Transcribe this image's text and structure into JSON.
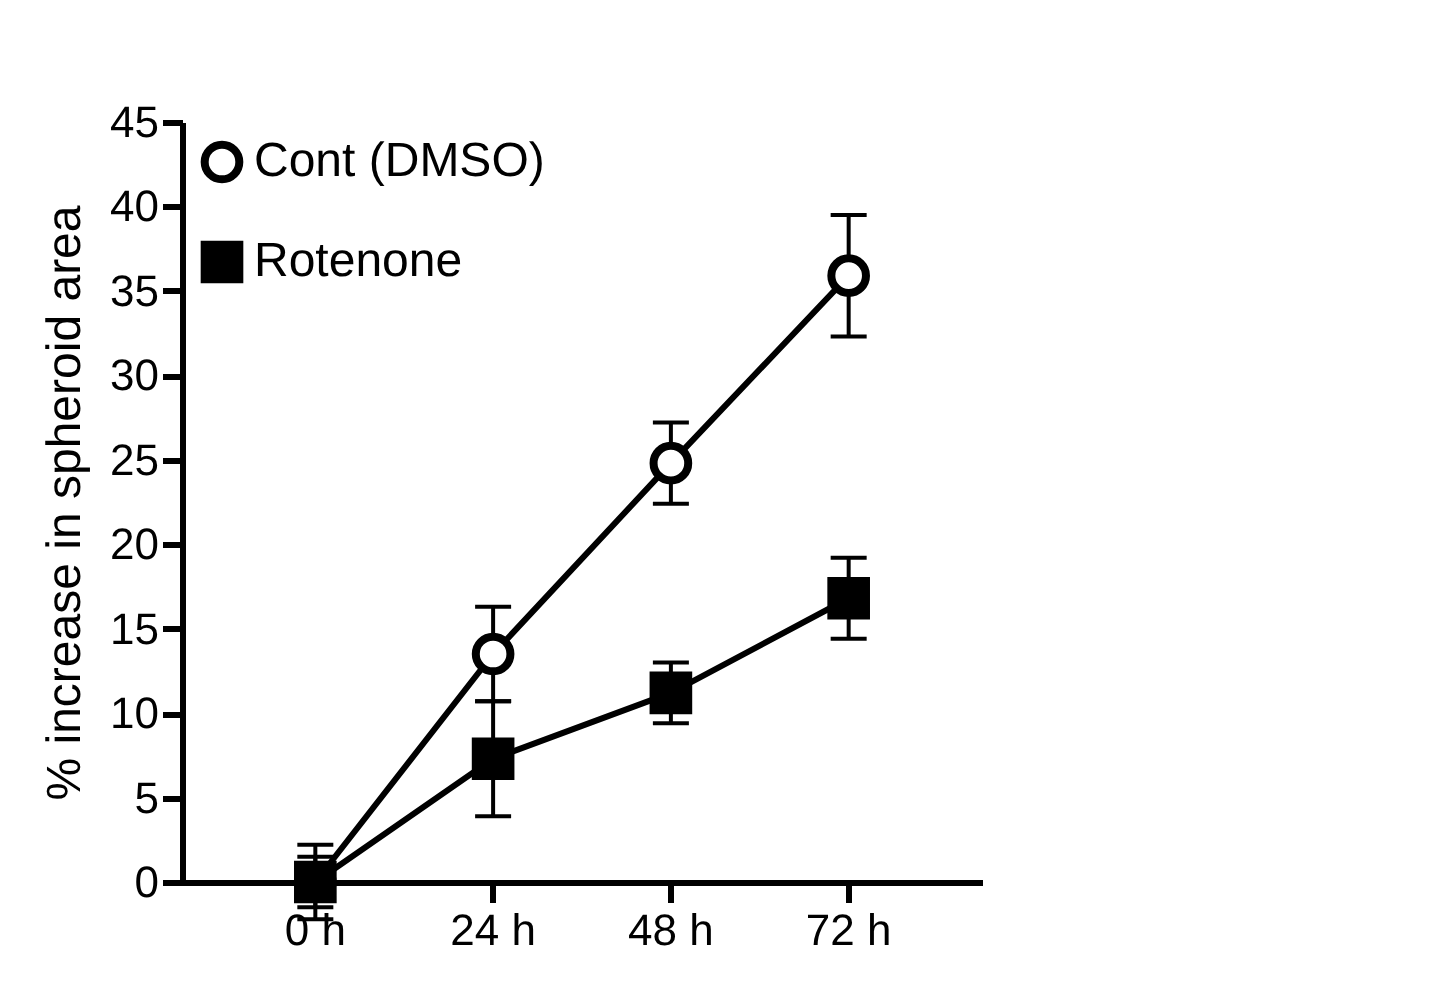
{
  "chart_data": {
    "type": "line",
    "ylabel": "% increase in spheroid area",
    "categories": [
      "0 h",
      "24 h",
      "48 h",
      "72 h"
    ],
    "series": [
      {
        "name": "Cont (DMSO)",
        "color": "#000000",
        "marker": "circle",
        "values": [
          0,
          13.5,
          24.8,
          35.9
        ],
        "errors": [
          2.2,
          2.8,
          2.4,
          3.6
        ]
      },
      {
        "name": "Rotenone",
        "color": "#000000",
        "marker": "square",
        "values": [
          0,
          7.3,
          11.2,
          16.8
        ],
        "errors": [
          1.5,
          3.4,
          1.8,
          2.4
        ]
      }
    ],
    "ylim": [
      0,
      45
    ],
    "yticks": [
      0,
      5,
      10,
      15,
      20,
      25,
      30,
      35,
      40,
      45
    ],
    "grid": false,
    "legend": "top left",
    "line_style": "solid"
  }
}
